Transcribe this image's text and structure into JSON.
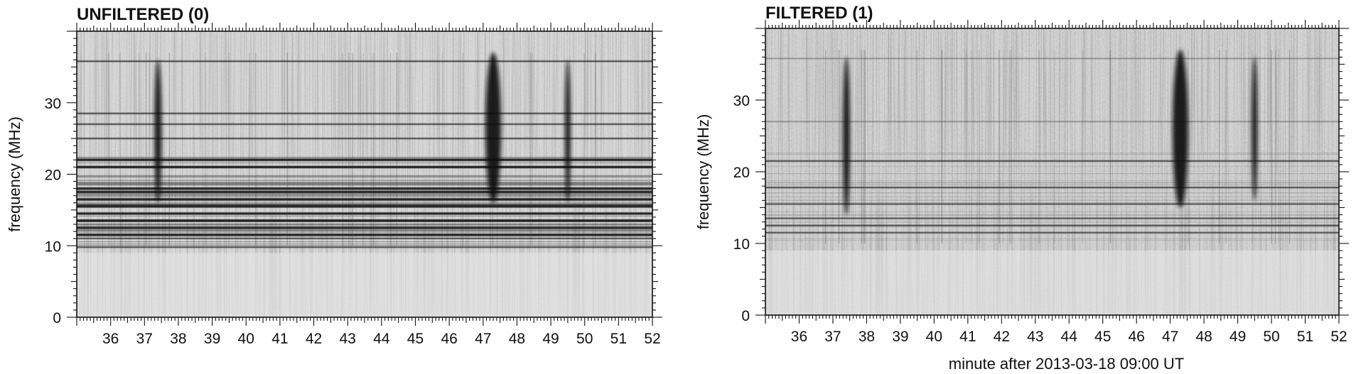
{
  "chart_data": [
    {
      "type": "heatmap",
      "title": "UNFILTERED (0)",
      "xlabel": "",
      "ylabel": "frequency (MHz)",
      "xlim": [
        35.0,
        52.0
      ],
      "ylim": [
        0,
        40
      ],
      "xticks": [
        "36",
        "37",
        "38",
        "39",
        "40",
        "41",
        "42",
        "43",
        "44",
        "45",
        "46",
        "47",
        "48",
        "49",
        "50",
        "51",
        "52"
      ],
      "yticks": [
        "0",
        "10",
        "20",
        "30"
      ],
      "bursts": [
        {
          "minute": 37.4,
          "f_low": 16,
          "f_high": 36
        },
        {
          "minute": 47.3,
          "f_low": 16,
          "f_high": 37
        },
        {
          "minute": 49.5,
          "f_low": 16,
          "f_high": 36
        }
      ],
      "interference_bands_mhz": [
        9.8,
        11.5,
        12.5,
        13.5,
        14.5,
        15.5,
        16.5,
        17.5,
        18.0,
        21.0,
        22.0,
        25.0,
        27.0,
        28.5,
        35.8
      ],
      "colormap": "grayscale, dark = high intensity"
    },
    {
      "type": "heatmap",
      "title": "FILTERED (1)",
      "xlabel": "minute after 2013-03-18  09:00 UT",
      "ylabel": "frequency (MHz)",
      "xlim": [
        35.0,
        52.0
      ],
      "ylim": [
        0,
        40
      ],
      "xticks": [
        "36",
        "37",
        "38",
        "39",
        "40",
        "41",
        "42",
        "43",
        "44",
        "45",
        "46",
        "47",
        "48",
        "49",
        "50",
        "51",
        "52"
      ],
      "yticks": [
        "0",
        "10",
        "20",
        "30"
      ],
      "bursts": [
        {
          "minute": 37.4,
          "f_low": 14,
          "f_high": 36
        },
        {
          "minute": 47.3,
          "f_low": 15,
          "f_high": 37
        },
        {
          "minute": 49.5,
          "f_low": 16,
          "f_high": 36
        }
      ],
      "interference_bands_mhz": [
        11.5,
        12.5,
        13.5,
        15.5,
        17.8,
        21.5,
        27.0,
        35.8
      ],
      "colormap": "grayscale, dark = high intensity"
    }
  ]
}
